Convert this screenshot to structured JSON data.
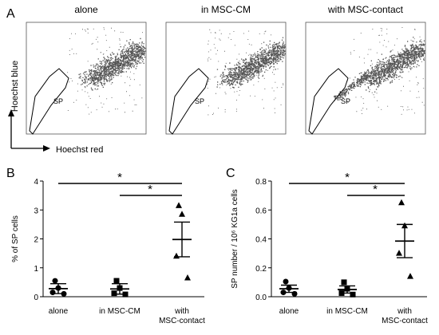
{
  "figure": {
    "panel_a": {
      "letter": "A",
      "titles": [
        "alone",
        "in MSC-CM",
        "with MSC-contact"
      ],
      "gate_label": "SP",
      "y_axis_label": "Hoechst blue",
      "x_axis_label": "Hoechst red"
    },
    "panel_b": {
      "letter": "B",
      "significance": [
        "*",
        "*"
      ]
    },
    "panel_c": {
      "letter": "C",
      "significance": [
        "*",
        "*"
      ]
    }
  },
  "chart_data": [
    {
      "type": "scatter",
      "panel": "B",
      "title": "",
      "ylabel": "% of SP cells",
      "xlabel": "",
      "ylim": [
        0,
        4
      ],
      "yticks": [
        "0",
        "1",
        "2",
        "3",
        "4"
      ],
      "categories": [
        "alone",
        "in MSC-CM",
        "with MSC-contact"
      ],
      "category_lines": [
        [
          "alone"
        ],
        [
          "in MSC-CM"
        ],
        [
          "with",
          "MSC-contact"
        ]
      ],
      "marker_shapes": [
        "circle",
        "square",
        "triangle"
      ],
      "points": [
        [
          0.55,
          0.3,
          0.15,
          0.1
        ],
        [
          0.55,
          0.3,
          0.12,
          0.08
        ],
        [
          3.15,
          2.85,
          1.4,
          0.65
        ]
      ],
      "mean": [
        0.28,
        0.27,
        1.98
      ],
      "sem": [
        0.17,
        0.18,
        0.6
      ],
      "grid": false
    },
    {
      "type": "scatter",
      "panel": "C",
      "title": "",
      "ylabel": "SP number / 10⁶ KG1a cells",
      "xlabel": "",
      "ylim": [
        0,
        0.8
      ],
      "yticks": [
        "0.0",
        "0.2",
        "0.4",
        "0.6",
        "0.8"
      ],
      "categories": [
        "alone",
        "in MSC-CM",
        "with MSC-contact"
      ],
      "category_lines": [
        [
          "alone"
        ],
        [
          "in MSC-CM"
        ],
        [
          "with",
          "MSC-contact"
        ]
      ],
      "marker_shapes": [
        "circle",
        "square",
        "triangle"
      ],
      "points": [
        [
          0.105,
          0.06,
          0.03,
          0.02
        ],
        [
          0.1,
          0.055,
          0.025,
          0.015
        ],
        [
          0.65,
          0.49,
          0.3,
          0.14
        ]
      ],
      "mean": [
        0.055,
        0.05,
        0.385
      ],
      "sem": [
        0.025,
        0.025,
        0.115
      ],
      "grid": false
    }
  ]
}
